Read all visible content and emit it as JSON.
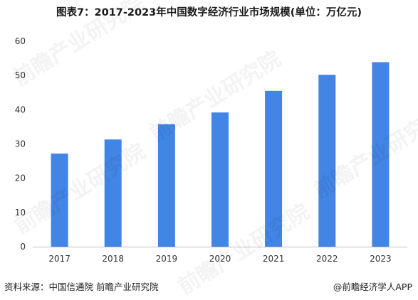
{
  "chart_data": {
    "type": "bar",
    "title": "图表7：2017-2023年中国数字经济行业市场规模(单位：万亿元)",
    "categories": [
      "2017",
      "2018",
      "2019",
      "2020",
      "2021",
      "2022",
      "2023"
    ],
    "values": [
      27.2,
      31.3,
      35.8,
      39.2,
      45.5,
      50.2,
      53.9
    ],
    "ylim": [
      0,
      60
    ],
    "yticks": [
      0,
      10,
      20,
      30,
      40,
      50,
      60
    ],
    "grid": false,
    "bar_color": "#4285e4"
  },
  "footer": {
    "source": "资料来源：中国信通院 前瞻产业研究院",
    "brand": "@前瞻经济学人APP"
  },
  "watermark": {
    "text": "前瞻产业研究院"
  }
}
